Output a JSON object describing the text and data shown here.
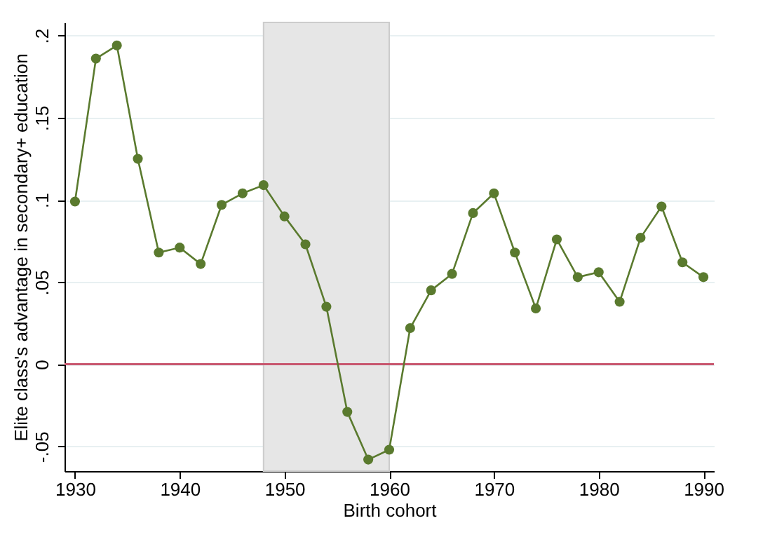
{
  "chart_data": {
    "type": "line",
    "xlabel": "Birth cohort",
    "ylabel": "Elite class's advantage in secondary+ education",
    "x": [
      1930,
      1932,
      1934,
      1936,
      1938,
      1940,
      1942,
      1944,
      1946,
      1948,
      1950,
      1952,
      1954,
      1956,
      1958,
      1960,
      1962,
      1964,
      1966,
      1968,
      1970,
      1972,
      1974,
      1976,
      1978,
      1980,
      1982,
      1984,
      1986,
      1988,
      1990
    ],
    "series": [
      {
        "color": "#5a7a2e",
        "values": [
          0.099,
          0.186,
          0.194,
          0.125,
          0.068,
          0.071,
          0.061,
          0.097,
          0.104,
          0.109,
          0.09,
          0.073,
          0.035,
          -0.029,
          -0.058,
          -0.052,
          0.022,
          0.045,
          0.055,
          0.092,
          0.104,
          0.068,
          0.034,
          0.076,
          0.053,
          0.056,
          0.038,
          0.077,
          0.096,
          0.062,
          0.053
        ]
      }
    ],
    "xlim": [
      1929,
      1991
    ],
    "xticks": [
      1930,
      1940,
      1950,
      1960,
      1970,
      1980,
      1990
    ],
    "ylim": [
      -0.065,
      0.208
    ],
    "yticks": [
      {
        "value": -0.05,
        "label": "-.05"
      },
      0,
      {
        "value": 0.05,
        "label": ".05"
      },
      {
        "value": 0.1,
        "label": ".1"
      },
      {
        "value": 0.15,
        "label": ".15"
      },
      {
        "value": 0.2,
        "label": ".2"
      }
    ],
    "ref_lines": [
      {
        "axis": "y",
        "value": 0,
        "color": "#c8566e"
      }
    ],
    "bands": [
      {
        "axis": "x",
        "from": 1948,
        "to": 1960,
        "color": "#e6e6e6"
      }
    ],
    "grid": "y",
    "marker": "circle",
    "line_style": "solid"
  }
}
